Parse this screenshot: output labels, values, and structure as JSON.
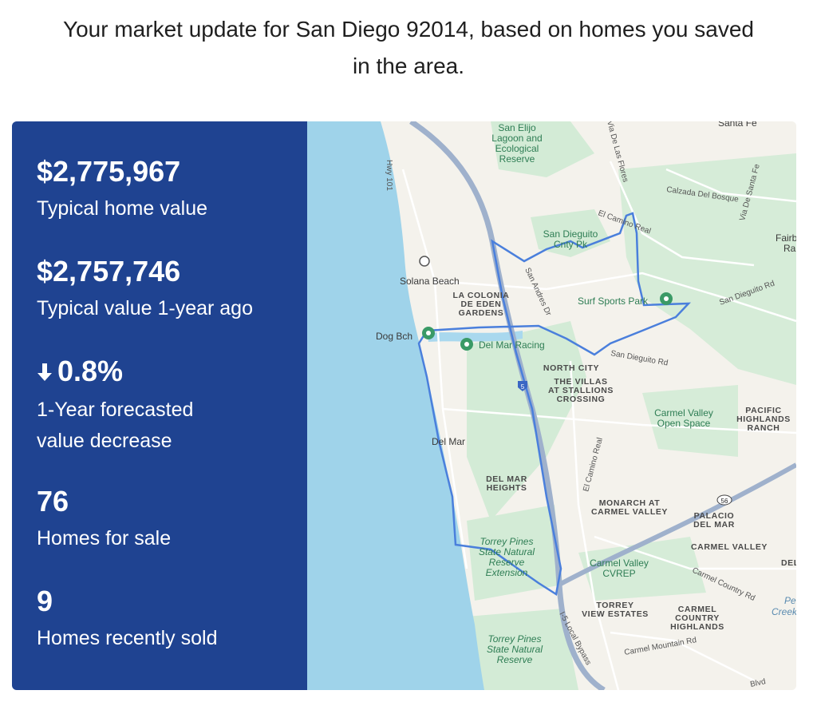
{
  "header": {
    "line1": "Your market update for San Diego 92014, based on homes you saved",
    "line2": "in the area."
  },
  "stats": {
    "typical_value": "$2,775,967",
    "typical_value_label": "Typical home value",
    "year_ago_value": "$2,757,746",
    "year_ago_label": "Typical value 1-year ago",
    "forecast_icon": "arrow-down-icon",
    "forecast_value": "0.8%",
    "forecast_label_1": "1-Year forecasted",
    "forecast_label_2": "value decrease",
    "for_sale_count": "76",
    "for_sale_label": "Homes for sale",
    "sold_count": "9",
    "sold_label": "Homes recently sold"
  },
  "colors": {
    "panel_bg": "#1f4391",
    "ocean": "#9fd3ea",
    "boundary": "#4a7fdc",
    "park": "#cfe9d3"
  },
  "map": {
    "labels": {
      "san_elijo_1": "San Elijo",
      "san_elijo_2": "Lagoon and",
      "san_elijo_3": "Ecological",
      "san_elijo_4": "Reserve",
      "santa_fe": "Santa Fe",
      "via_de_las_flores": "Via De Las Flores",
      "hwy101": "Hwy 101",
      "calzada": "Calzada Del Bosque",
      "via_de_santa_fe": "Via De Santa Fe",
      "el_camino_real_n": "El Camino Real",
      "fairbanks_1": "Fairb",
      "fairbanks_2": "Ra",
      "san_dieguito_pk_1": "San Dieguito",
      "san_dieguito_pk_2": "Cnty Pk",
      "solana_beach": "Solana Beach",
      "san_andres": "San Andres Dr",
      "la_colonia_1": "LA COLONIA",
      "la_colonia_2": "DE EDEN",
      "la_colonia_3": "GARDENS",
      "surf_sports": "Surf Sports Park",
      "san_dieguito_rd_e": "San Dieguito Rd",
      "dog_bch": "Dog Bch",
      "del_mar_racing": "Del Mar Racing",
      "san_dieguito_rd": "San Dieguito Rd",
      "north_city": "NORTH CITY",
      "villas_1": "THE VILLAS",
      "villas_2": "AT STALLIONS",
      "villas_3": "CROSSING",
      "carmel_valley_os_1": "Carmel Valley",
      "carmel_valley_os_2": "Open Space",
      "pacific_1": "PACIFIC",
      "pacific_2": "HIGHLANDS",
      "pacific_3": "RANCH",
      "del_mar": "Del Mar",
      "el_camino_real_s": "El Camino Real",
      "del_mar_heights_1": "DEL MAR",
      "del_mar_heights_2": "HEIGHTS",
      "monarch_1": "MONARCH AT",
      "monarch_2": "CARMEL VALLEY",
      "palacio_1": "PALACIO",
      "palacio_2": "DEL MAR",
      "route56": "56",
      "torrey_ext_1": "Torrey Pines",
      "torrey_ext_2": "State Natural",
      "torrey_ext_3": "Reserve",
      "torrey_ext_4": "Extension",
      "carmel_valley_cap": "CARMEL VALLEY",
      "del_right": "DEL",
      "cvrep_1": "Carmel Valley",
      "cvrep_2": "CVREP",
      "carmel_country_rd": "Carmel Country Rd",
      "torrey_view_1": "TORREY",
      "torrey_view_2": "VIEW ESTATES",
      "carmel_country_1": "CARMEL",
      "carmel_country_2": "COUNTRY",
      "carmel_country_3": "HIGHLANDS",
      "penasquitos_1": "Pena",
      "penasquitos_2": "Creek V",
      "i5_local": "I-5 Local Bypass",
      "carmel_mountain": "Carmel Mountain Rd",
      "torrey_pines_1": "Torrey Pines",
      "torrey_pines_2": "State Natural",
      "torrey_pines_3": "Reserve",
      "blvd": "Blvd",
      "i5": "5"
    }
  }
}
